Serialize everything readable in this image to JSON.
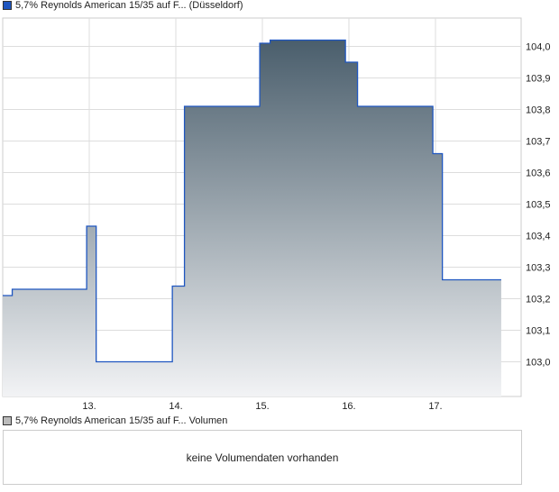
{
  "chart_data": {
    "type": "area",
    "legend": "5,7% Reynolds American 15/35 auf F... (Düsseldorf)",
    "xlabel": "",
    "ylabel": "",
    "x_ticks": [
      {
        "x": 13,
        "label": "13."
      },
      {
        "x": 14,
        "label": "14."
      },
      {
        "x": 15,
        "label": "15."
      },
      {
        "x": 16,
        "label": "16."
      },
      {
        "x": 17,
        "label": "17."
      }
    ],
    "y_ticks": [
      {
        "v": 103.0,
        "label": "103,0"
      },
      {
        "v": 103.1,
        "label": "103,1"
      },
      {
        "v": 103.2,
        "label": "103,2"
      },
      {
        "v": 103.3,
        "label": "103,3"
      },
      {
        "v": 103.4,
        "label": "103,4"
      },
      {
        "v": 103.5,
        "label": "103,5"
      },
      {
        "v": 103.6,
        "label": "103,6"
      },
      {
        "v": 103.7,
        "label": "103,7"
      },
      {
        "v": 103.8,
        "label": "103,8"
      },
      {
        "v": 103.9,
        "label": "103,9"
      },
      {
        "v": 104.0,
        "label": "104,0"
      }
    ],
    "xlim": [
      12.0,
      17.99
    ],
    "ylim": [
      102.89,
      104.09
    ],
    "grid": true,
    "step": true,
    "points": [
      [
        12.0,
        103.21
      ],
      [
        12.11,
        103.23
      ],
      [
        12.97,
        103.43
      ],
      [
        13.08,
        103.0
      ],
      [
        13.96,
        103.24
      ],
      [
        14.1,
        103.81
      ],
      [
        14.97,
        104.01
      ],
      [
        15.09,
        104.02
      ],
      [
        15.96,
        103.95
      ],
      [
        16.1,
        103.81
      ],
      [
        16.97,
        103.66
      ],
      [
        17.08,
        103.26
      ],
      [
        17.76,
        103.26
      ]
    ],
    "colors": {
      "line": "#1f56c0",
      "fill_top": "#4a5e6c",
      "fill_bottom": "#f2f3f5",
      "grid": "#dddddd"
    }
  },
  "volume": {
    "legend": "5,7% Reynolds American 15/35 auf F... Volumen",
    "message": "keine Volumendaten vorhanden"
  }
}
